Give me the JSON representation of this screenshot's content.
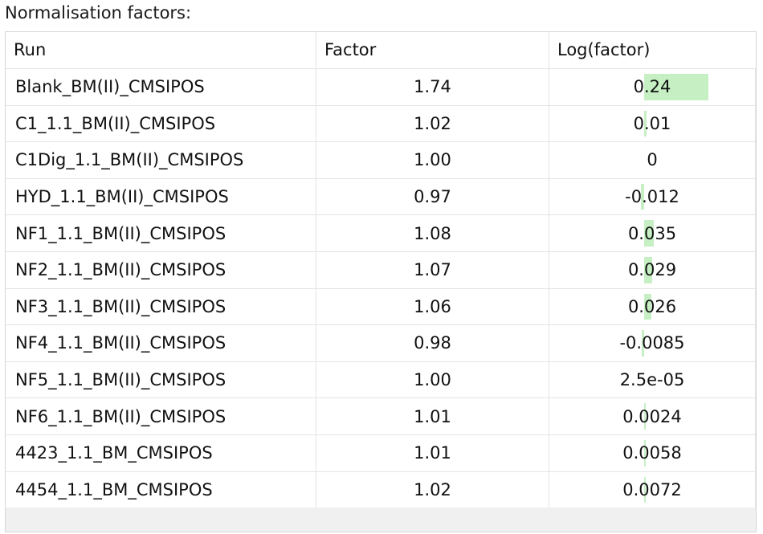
{
  "heading": "Normalisation factors:",
  "table": {
    "columns": [
      "Run",
      "Factor",
      "Log(factor)"
    ],
    "rows": [
      {
        "run": "Blank_BM(II)_CMSIPOS",
        "factor": "1.74",
        "log": "0.24",
        "log_value": 0.24
      },
      {
        "run": "C1_1.1_BM(II)_CMSIPOS",
        "factor": "1.02",
        "log": "0.01",
        "log_value": 0.01
      },
      {
        "run": "C1Dig_1.1_BM(II)_CMSIPOS",
        "factor": "1.00",
        "log": "0",
        "log_value": 0
      },
      {
        "run": "HYD_1.1_BM(II)_CMSIPOS",
        "factor": "0.97",
        "log": "-0.012",
        "log_value": -0.012
      },
      {
        "run": "NF1_1.1_BM(II)_CMSIPOS",
        "factor": "1.08",
        "log": "0.035",
        "log_value": 0.035
      },
      {
        "run": "NF2_1.1_BM(II)_CMSIPOS",
        "factor": "1.07",
        "log": "0.029",
        "log_value": 0.029
      },
      {
        "run": "NF3_1.1_BM(II)_CMSIPOS",
        "factor": "1.06",
        "log": "0.026",
        "log_value": 0.026
      },
      {
        "run": "NF4_1.1_BM(II)_CMSIPOS",
        "factor": "0.98",
        "log": "-0.0085",
        "log_value": -0.0085
      },
      {
        "run": "NF5_1.1_BM(II)_CMSIPOS",
        "factor": "1.00",
        "log": "2.5e-05",
        "log_value": 2.5e-05
      },
      {
        "run": "NF6_1.1_BM(II)_CMSIPOS",
        "factor": "1.01",
        "log": "0.0024",
        "log_value": 0.0024
      },
      {
        "run": "4423_1.1_BM_CMSIPOS",
        "factor": "1.01",
        "log": "0.0058",
        "log_value": 0.0058
      },
      {
        "run": "4454_1.1_BM_CMSIPOS",
        "factor": "1.02",
        "log": "0.0072",
        "log_value": 0.0072
      }
    ]
  },
  "colors": {
    "bar": "#c6f0c3",
    "grid_line": "#e4e4e4",
    "footer": "#f0f0f0"
  }
}
